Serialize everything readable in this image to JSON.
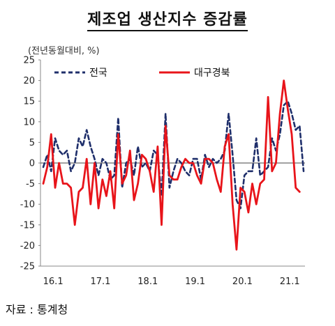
{
  "title": "제조업 생산지수 증감률",
  "source": "자료 : 통계청",
  "chart_data": {
    "type": "line",
    "unit_label": "(전년동월대비, %)",
    "ylim": [
      -25,
      25
    ],
    "yticks": [
      25,
      20,
      15,
      10,
      5,
      0,
      -5,
      -10,
      -15,
      -20,
      -25
    ],
    "xtick_labels": [
      "16.1",
      "17.1",
      "18.1",
      "19.1",
      "20.1",
      "21.1"
    ],
    "legend_position": "top",
    "grid": false,
    "series": [
      {
        "name": "전국",
        "color": "#1f2f6b",
        "style": "dashed",
        "values": [
          -1,
          2,
          -2,
          6,
          3,
          2,
          3,
          -2,
          0,
          6,
          4,
          8,
          4,
          1,
          -3,
          1,
          0,
          -4,
          -3,
          11,
          -6,
          0,
          1,
          -3,
          4,
          -1,
          0,
          -2,
          3,
          2,
          -8,
          12,
          -6,
          -2,
          1,
          0,
          -2,
          -3,
          1,
          1,
          -4,
          2,
          -1,
          1,
          0,
          1,
          3,
          12,
          2,
          -9,
          -11,
          -3,
          -2,
          -2,
          6,
          -3,
          -2,
          -1,
          6,
          3,
          7,
          14,
          15,
          12,
          8,
          9,
          -2
        ]
      },
      {
        "name": "대구경북",
        "color": "#e8141a",
        "style": "solid",
        "values": [
          -5,
          -1,
          7,
          -6,
          0,
          -5,
          -5,
          -6,
          -15,
          -7,
          -6,
          1,
          -10,
          0,
          -11,
          -4,
          -8,
          -2,
          -11,
          7,
          -5,
          -3,
          3,
          -9,
          -5,
          2,
          1,
          -2,
          -7,
          4,
          -15,
          9,
          -3,
          -4,
          -4,
          -1,
          1,
          0,
          0,
          -3,
          -5,
          1,
          1,
          0,
          -4,
          -7,
          4,
          7,
          -10,
          -21,
          -6,
          -7,
          -12,
          -5,
          -10,
          -5,
          -4,
          16,
          -2,
          0,
          12,
          20,
          13,
          7,
          -6,
          -7
        ]
      }
    ]
  }
}
